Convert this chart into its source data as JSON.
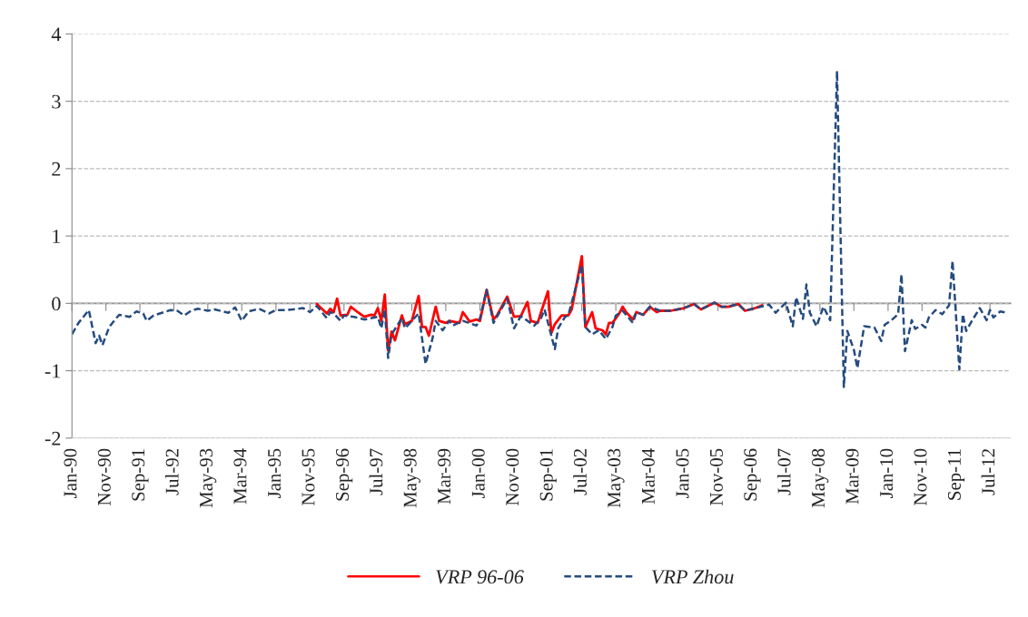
{
  "chart_data": {
    "type": "line",
    "xlim": [
      "1990-01",
      "2013-01"
    ],
    "xticks": [
      {
        "value": "1990-01",
        "label": "Jan-90"
      },
      {
        "value": "1990-11",
        "label": "Nov-90"
      },
      {
        "value": "1991-09",
        "label": "Sep-91"
      },
      {
        "value": "1992-07",
        "label": "Jul-92"
      },
      {
        "value": "1993-05",
        "label": "May-93"
      },
      {
        "value": "1994-03",
        "label": "Mar-94"
      },
      {
        "value": "1995-01",
        "label": "Jan-95"
      },
      {
        "value": "1995-11",
        "label": "Nov-95"
      },
      {
        "value": "1996-09",
        "label": "Sep-96"
      },
      {
        "value": "1997-07",
        "label": "Jul-97"
      },
      {
        "value": "1998-05",
        "label": "May-98"
      },
      {
        "value": "1999-03",
        "label": "Mar-99"
      },
      {
        "value": "2000-01",
        "label": "Jan-00"
      },
      {
        "value": "2000-11",
        "label": "Nov-00"
      },
      {
        "value": "2001-09",
        "label": "Sep-01"
      },
      {
        "value": "2002-07",
        "label": "Jul-02"
      },
      {
        "value": "2003-05",
        "label": "May-03"
      },
      {
        "value": "2004-03",
        "label": "Mar-04"
      },
      {
        "value": "2005-01",
        "label": "Jan-05"
      },
      {
        "value": "2005-11",
        "label": "Nov-05"
      },
      {
        "value": "2006-09",
        "label": "Sep-06"
      },
      {
        "value": "2007-07",
        "label": "Jul-07"
      },
      {
        "value": "2008-05",
        "label": "May-08"
      },
      {
        "value": "2009-03",
        "label": "Mar-09"
      },
      {
        "value": "2010-01",
        "label": "Jan-10"
      },
      {
        "value": "2010-11",
        "label": "Nov-10"
      },
      {
        "value": "2011-09",
        "label": "Sep-11"
      },
      {
        "value": "2012-07",
        "label": "Jul-12"
      }
    ],
    "ylim": [
      -2,
      4
    ],
    "yticks": [
      -2,
      -1,
      0,
      1,
      2,
      3,
      4
    ],
    "grid": "y",
    "legend": "bottom",
    "series": [
      {
        "name": "VRP 96-06",
        "color": "#ff0000",
        "line_style": "solid",
        "x": [
          "1996-01",
          "1996-04",
          "1996-05",
          "1996-06",
          "1996-07",
          "1996-08",
          "1996-10",
          "1996-11",
          "1997-01",
          "1997-03",
          "1997-05",
          "1997-06",
          "1997-07",
          "1997-08",
          "1997-09",
          "1997-10",
          "1997-11",
          "1997-12",
          "1998-02",
          "1998-03",
          "1998-05",
          "1998-07",
          "1998-08",
          "1998-09",
          "1998-10",
          "1998-12",
          "1999-01",
          "1999-03",
          "1999-04",
          "1999-07",
          "1999-08",
          "1999-10",
          "1999-12",
          "2000-01",
          "2000-03",
          "2000-05",
          "2000-06",
          "2000-09",
          "2000-11",
          "2001-01",
          "2001-03",
          "2001-04",
          "2001-06",
          "2001-07",
          "2001-09",
          "2001-10",
          "2001-11",
          "2002-01",
          "2002-03",
          "2002-04",
          "2002-07",
          "2002-08",
          "2002-10",
          "2002-11",
          "2003-01",
          "2003-02",
          "2003-03",
          "2003-04",
          "2003-06",
          "2003-07",
          "2003-08",
          "2003-10",
          "2003-11",
          "2004-01",
          "2004-03",
          "2004-05",
          "2004-06",
          "2004-09",
          "2004-11",
          "2005-01",
          "2005-04",
          "2005-06",
          "2005-08",
          "2005-10",
          "2005-12",
          "2006-02",
          "2006-05",
          "2006-07",
          "2006-10",
          "2006-12"
        ],
        "values": [
          -0.01,
          -0.15,
          -0.08,
          -0.13,
          0.07,
          -0.18,
          -0.17,
          -0.05,
          -0.13,
          -0.2,
          -0.17,
          -0.18,
          -0.07,
          -0.26,
          0.13,
          -0.7,
          -0.42,
          -0.55,
          -0.18,
          -0.31,
          -0.26,
          0.11,
          -0.35,
          -0.35,
          -0.48,
          -0.05,
          -0.26,
          -0.29,
          -0.26,
          -0.29,
          -0.13,
          -0.27,
          -0.24,
          -0.26,
          0.2,
          -0.24,
          -0.18,
          0.1,
          -0.2,
          -0.19,
          0.02,
          -0.26,
          -0.29,
          -0.13,
          0.18,
          -0.44,
          -0.31,
          -0.18,
          -0.18,
          -0.09,
          0.7,
          -0.35,
          -0.13,
          -0.37,
          -0.4,
          -0.46,
          -0.29,
          -0.29,
          -0.15,
          -0.05,
          -0.13,
          -0.24,
          -0.13,
          -0.17,
          -0.05,
          -0.13,
          -0.11,
          -0.11,
          -0.09,
          -0.07,
          -0.01,
          -0.09,
          -0.04,
          0.01,
          -0.05,
          -0.05,
          -0.01,
          -0.11,
          -0.07,
          -0.03
        ]
      },
      {
        "name": "VRP Zhou",
        "color": "#254b7f",
        "line_style": "dashed",
        "x": [
          "1990-01",
          "1990-03",
          "1990-06",
          "1990-08",
          "1990-09",
          "1990-10",
          "1990-12",
          "1991-02",
          "1991-03",
          "1991-06",
          "1991-08",
          "1991-10",
          "1991-11",
          "1992-01",
          "1992-06",
          "1992-08",
          "1992-10",
          "1992-12",
          "1993-02",
          "1993-05",
          "1993-07",
          "1993-11",
          "1994-01",
          "1994-03",
          "1994-05",
          "1994-08",
          "1994-11",
          "1995-01",
          "1995-04",
          "1995-06",
          "1995-09",
          "1995-11",
          "1996-01",
          "1996-04",
          "1996-05",
          "1996-06",
          "1996-08",
          "1996-09",
          "1996-12",
          "1997-03",
          "1997-07",
          "1997-08",
          "1997-09",
          "1997-10",
          "1997-11",
          "1998-02",
          "1998-03",
          "1998-07",
          "1998-09",
          "1998-11",
          "1998-12",
          "1999-02",
          "1999-04",
          "1999-05",
          "1999-08",
          "1999-12",
          "2000-01",
          "2000-03",
          "2000-05",
          "2000-09",
          "2000-11",
          "2001-01",
          "2001-05",
          "2001-07",
          "2001-08",
          "2001-11",
          "2001-12",
          "2002-02",
          "2002-03",
          "2002-07",
          "2002-08",
          "2002-10",
          "2002-12",
          "2003-02",
          "2003-04",
          "2003-05",
          "2003-07",
          "2003-10",
          "2003-11",
          "2004-01",
          "2004-03",
          "2004-06",
          "2004-09",
          "2004-11",
          "2005-01",
          "2005-04",
          "2005-06",
          "2005-08",
          "2005-10",
          "2005-12",
          "2006-02",
          "2006-05",
          "2006-07",
          "2006-10",
          "2007-02",
          "2007-04",
          "2007-07",
          "2007-09",
          "2007-10",
          "2007-12",
          "2008-01",
          "2008-02",
          "2008-04",
          "2008-06",
          "2008-08",
          "2008-10",
          "2008-12",
          "2009-01",
          "2009-03",
          "2009-04",
          "2009-06",
          "2009-09",
          "2009-11",
          "2009-12",
          "2010-02",
          "2010-04",
          "2010-05",
          "2010-06",
          "2010-08",
          "2010-09",
          "2010-11",
          "2010-12",
          "2011-01",
          "2011-03",
          "2011-05",
          "2011-07",
          "2011-08",
          "2011-10",
          "2011-11",
          "2011-12",
          "2012-02",
          "2012-04",
          "2012-06",
          "2012-07",
          "2012-08",
          "2012-10",
          "2012-12"
        ],
        "values": [
          -0.46,
          -0.29,
          -0.1,
          -0.59,
          -0.48,
          -0.62,
          -0.35,
          -0.22,
          -0.17,
          -0.2,
          -0.12,
          -0.15,
          -0.26,
          -0.18,
          -0.1,
          -0.11,
          -0.18,
          -0.11,
          -0.08,
          -0.11,
          -0.09,
          -0.14,
          -0.06,
          -0.26,
          -0.12,
          -0.08,
          -0.15,
          -0.1,
          -0.1,
          -0.09,
          -0.07,
          -0.13,
          -0.04,
          -0.22,
          -0.13,
          -0.15,
          -0.26,
          -0.18,
          -0.2,
          -0.24,
          -0.2,
          -0.37,
          -0.09,
          -0.81,
          -0.46,
          -0.22,
          -0.37,
          -0.15,
          -0.9,
          -0.53,
          -0.26,
          -0.4,
          -0.26,
          -0.33,
          -0.26,
          -0.33,
          -0.22,
          0.2,
          -0.29,
          0.07,
          -0.37,
          -0.19,
          -0.33,
          -0.22,
          -0.09,
          -0.68,
          -0.37,
          -0.2,
          -0.18,
          0.57,
          -0.35,
          -0.46,
          -0.4,
          -0.53,
          -0.35,
          -0.18,
          -0.11,
          -0.29,
          -0.13,
          -0.17,
          -0.05,
          -0.11,
          -0.11,
          -0.09,
          -0.07,
          -0.01,
          -0.09,
          -0.04,
          0.01,
          -0.05,
          -0.05,
          -0.01,
          -0.11,
          -0.07,
          -0.02,
          -0.14,
          0.01,
          -0.34,
          0.09,
          -0.23,
          0.28,
          -0.14,
          -0.34,
          -0.05,
          -0.25,
          3.45,
          -1.24,
          -0.41,
          -0.69,
          -0.96,
          -0.34,
          -0.36,
          -0.56,
          -0.32,
          -0.25,
          -0.16,
          0.43,
          -0.71,
          -0.25,
          -0.38,
          -0.32,
          -0.36,
          -0.21,
          -0.1,
          -0.16,
          -0.03,
          0.63,
          -0.98,
          -0.16,
          -0.41,
          -0.23,
          -0.07,
          -0.25,
          -0.1,
          -0.21,
          -0.12,
          -0.14
        ]
      }
    ]
  }
}
